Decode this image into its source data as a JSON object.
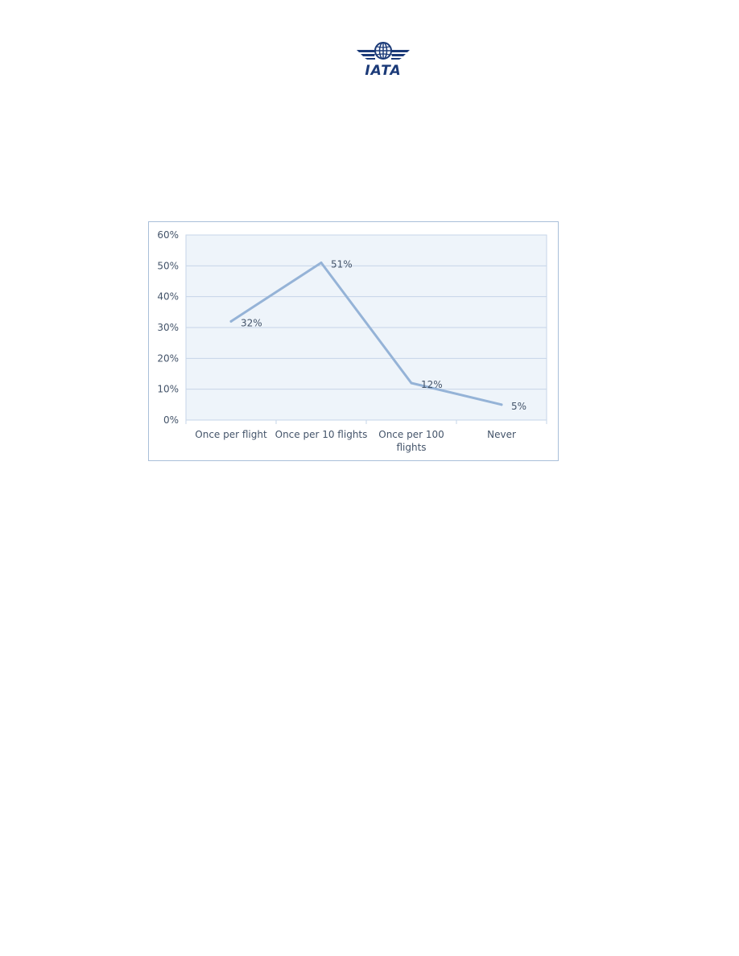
{
  "logo": {
    "text": "IATA",
    "icon": "globe-wings-icon",
    "color": "#1b3a78"
  },
  "chart_data": {
    "type": "line",
    "categories": [
      "Once per flight",
      "Once per 10 flights",
      "Once per 100 flights",
      "Never"
    ],
    "category_lines": [
      [
        "Once per flight"
      ],
      [
        "Once per 10 flights"
      ],
      [
        "Once per 100",
        "flights"
      ],
      [
        "Never"
      ]
    ],
    "values": [
      32,
      51,
      12,
      5
    ],
    "data_labels": [
      "32%",
      "51%",
      "12%",
      "5%"
    ],
    "ylim": [
      0,
      60
    ],
    "yticks": [
      0,
      10,
      20,
      30,
      40,
      50,
      60
    ],
    "ytick_labels": [
      "0%",
      "10%",
      "20%",
      "30%",
      "40%",
      "50%",
      "60%"
    ],
    "grid": true,
    "legend": "none",
    "colors": {
      "line": "#95b3d7",
      "plot_bg": "#eef4fa",
      "grid": "#c6d5e8",
      "text": "#44546a"
    }
  }
}
